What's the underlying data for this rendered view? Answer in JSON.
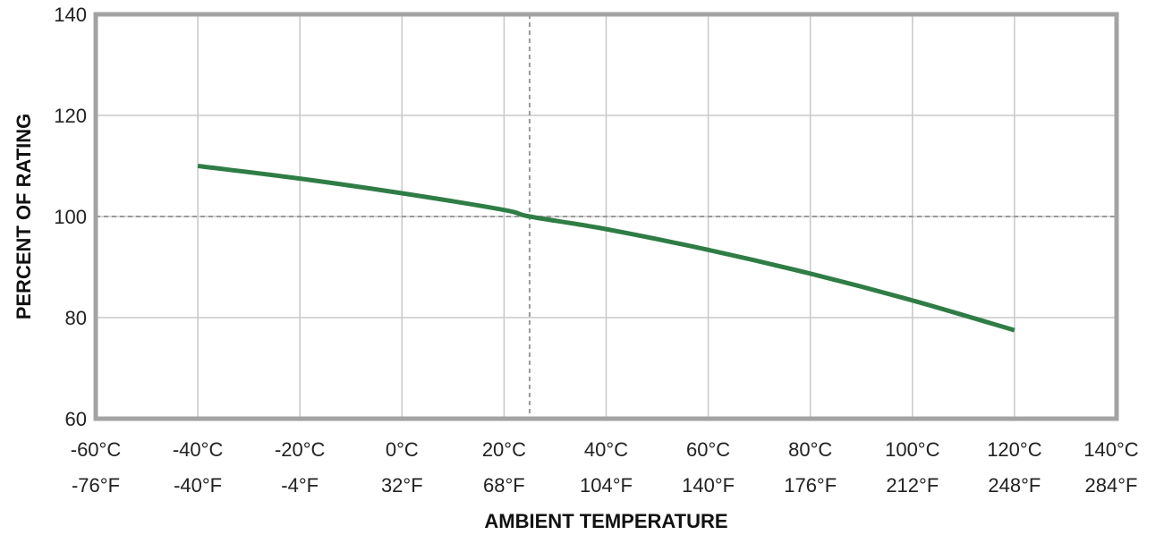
{
  "chart_data": {
    "type": "line",
    "title": "",
    "xlabel": "AMBIENT TEMPERATURE",
    "ylabel": "PERCENT OF RATING",
    "xlim": [
      -60,
      140
    ],
    "ylim": [
      60,
      140
    ],
    "grid": true,
    "x_ticks": [
      {
        "value": -60,
        "label_c": "-60°C",
        "label_f": "-76°F"
      },
      {
        "value": -40,
        "label_c": "-40°C",
        "label_f": "-40°F"
      },
      {
        "value": -20,
        "label_c": "-20°C",
        "label_f": "-4°F"
      },
      {
        "value": 0,
        "label_c": "0°C",
        "label_f": "32°F"
      },
      {
        "value": 20,
        "label_c": "20°C",
        "label_f": "68°F"
      },
      {
        "value": 40,
        "label_c": "40°C",
        "label_f": "104°F"
      },
      {
        "value": 60,
        "label_c": "60°C",
        "label_f": "140°F"
      },
      {
        "value": 80,
        "label_c": "80°C",
        "label_f": "176°F"
      },
      {
        "value": 100,
        "label_c": "100°C",
        "label_f": "212°F"
      },
      {
        "value": 120,
        "label_c": "120°C",
        "label_f": "248°F"
      },
      {
        "value": 140,
        "label_c": "140°C",
        "label_f": "284°F"
      }
    ],
    "y_ticks": [
      60,
      80,
      100,
      120,
      140
    ],
    "reference_lines": {
      "x": 25,
      "y": 100
    },
    "series": [
      {
        "color": "#2f7d45",
        "points": [
          {
            "x": -40,
            "y": 110
          },
          {
            "x": -20,
            "y": 107.5
          },
          {
            "x": 0,
            "y": 104.6
          },
          {
            "x": 20,
            "y": 101.3
          },
          {
            "x": 25,
            "y": 100
          },
          {
            "x": 40,
            "y": 97.5
          },
          {
            "x": 60,
            "y": 93.4
          },
          {
            "x": 80,
            "y": 88.7
          },
          {
            "x": 100,
            "y": 83.4
          },
          {
            "x": 120,
            "y": 77.5
          }
        ]
      }
    ]
  },
  "colors": {
    "frame": "#a3a3a3",
    "grid": "#c8c8c8",
    "reference": "#9a9a9a",
    "series": "#2f7d45"
  }
}
